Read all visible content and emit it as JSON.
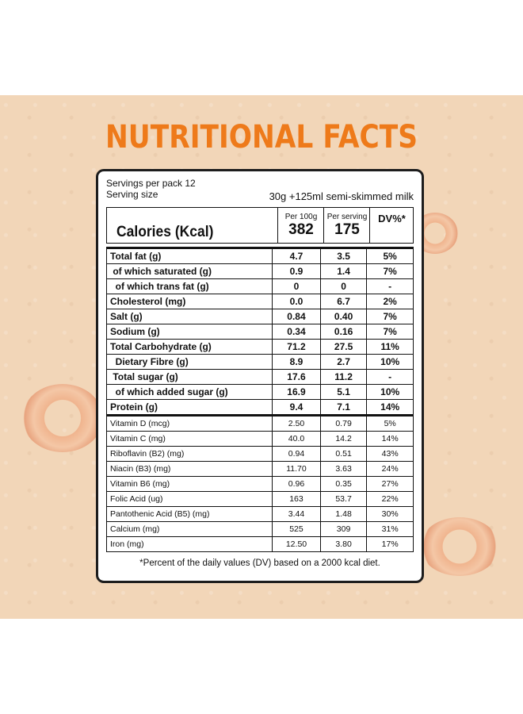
{
  "title": "NUTRITIONAL FACTS",
  "servings": {
    "per_pack_label": "Servings  per pack 12",
    "size_label": "Serving size",
    "size_value": "30g +125ml semi-skimmed milk"
  },
  "header": {
    "calories_label": "Calories (Kcal)",
    "per100_label": "Per 100g",
    "per100_value": "382",
    "perserving_label": "Per serving",
    "perserving_value": "175",
    "dv_label": "DV%*"
  },
  "rows": [
    {
      "name": "Total fat (g)",
      "per100": "4.7",
      "serving": "3.5",
      "dv": "5%"
    },
    {
      "name": " of which saturated (g)",
      "per100": "0.9",
      "serving": "1.4",
      "dv": "7%"
    },
    {
      "name": "  of which trans fat (g)",
      "per100": "0",
      "serving": "0",
      "dv": "-"
    },
    {
      "name": "Cholesterol (mg)",
      "per100": "0.0",
      "serving": "6.7",
      "dv": "2%"
    },
    {
      "name": "Salt (g)",
      "per100": "0.84",
      "serving": "0.40",
      "dv": "7%"
    },
    {
      "name": "Sodium (g)",
      "per100": "0.34",
      "serving": "0.16",
      "dv": "7%"
    },
    {
      "name": "Total Carbohydrate (g)",
      "per100": "71.2",
      "serving": "27.5",
      "dv": "11%"
    },
    {
      "name": "  Dietary Fibre (g)",
      "per100": "8.9",
      "serving": "2.7",
      "dv": "10%"
    },
    {
      "name": " Total sugar (g)",
      "per100": "17.6",
      "serving": "11.2",
      "dv": "-"
    },
    {
      "name": "  of which added sugar (g)",
      "per100": "16.9",
      "serving": "5.1",
      "dv": "10%"
    },
    {
      "name": "Protein (g)",
      "per100": "9.4",
      "serving": "7.1",
      "dv": "14%"
    },
    {
      "name": "Vitamin D (mcg)",
      "per100": "2.50",
      "serving": "0.79",
      "dv": "5%"
    },
    {
      "name": "Vitamin C (mg)",
      "per100": "40.0",
      "serving": "14.2",
      "dv": "14%"
    },
    {
      "name": "Riboflavin (B2) (mg)",
      "per100": "0.94",
      "serving": "0.51",
      "dv": "43%"
    },
    {
      "name": "Niacin (B3) (mg)",
      "per100": "11.70",
      "serving": "3.63",
      "dv": "24%"
    },
    {
      "name": "Vitamin B6 (mg)",
      "per100": "0.96",
      "serving": "0.35",
      "dv": "27%"
    },
    {
      "name": "Folic Acid (ug)",
      "per100": "163",
      "serving": "53.7",
      "dv": "22%"
    },
    {
      "name": "Pantothenic Acid (B5) (mg)",
      "per100": "3.44",
      "serving": "1.48",
      "dv": "30%"
    },
    {
      "name": "Calcium (mg)",
      "per100": "525",
      "serving": "309",
      "dv": "31%"
    },
    {
      "name": "Iron (mg)",
      "per100": "12.50",
      "serving": "3.80",
      "dv": "17%"
    }
  ],
  "footnote": "*Percent of the daily values (DV) based on a 2000 kcal diet.",
  "colors": {
    "title": "#ee7a1a",
    "background": "#f2d6b8"
  }
}
